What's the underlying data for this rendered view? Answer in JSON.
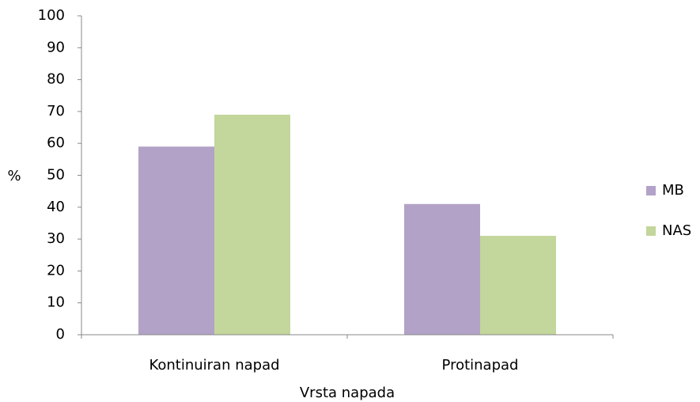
{
  "chart_data": {
    "type": "bar",
    "categories": [
      "Kontinuiran napad",
      "Protinapad"
    ],
    "series": [
      {
        "name": "MB",
        "color": "#b3a2c7",
        "values": [
          59,
          41
        ]
      },
      {
        "name": "NAS",
        "color": "#c3d69b",
        "values": [
          69,
          31
        ]
      }
    ],
    "ylim": [
      0,
      100
    ],
    "yticks": [
      0,
      10,
      20,
      30,
      40,
      50,
      60,
      70,
      80,
      90,
      100
    ],
    "y_label": "%",
    "x_label": "Vrsta napada",
    "grid": false,
    "legend": "right"
  }
}
